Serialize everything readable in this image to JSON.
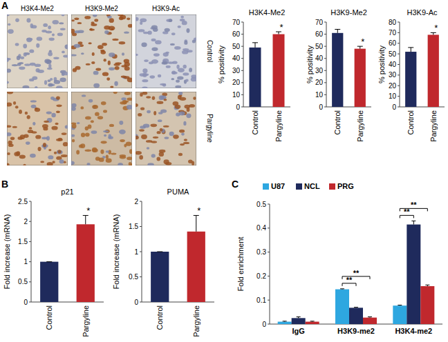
{
  "figure": {
    "panel_labels": [
      "A",
      "B",
      "C"
    ],
    "image_columns": [
      "H3K4-Me2",
      "H3K9-Me2",
      "H3K9-Ac"
    ],
    "image_rows": [
      "Control",
      "Pargyline"
    ]
  },
  "chart_data": [
    {
      "type": "bar",
      "title": "H3K4-Me2",
      "y_label": "% positivity",
      "categories": [
        "Control",
        "Pargyline"
      ],
      "values": [
        49,
        60
      ],
      "errors": [
        4,
        2
      ],
      "annotations": [
        null,
        "*"
      ],
      "colors": [
        "#1f2a5c",
        "#c0282d"
      ],
      "ylim": [
        0,
        70
      ],
      "yticks": [
        0,
        10,
        20,
        30,
        40,
        50,
        60,
        70
      ]
    },
    {
      "type": "bar",
      "title": "H3K9-Me2",
      "y_label": "% positivity",
      "categories": [
        "Control",
        "Pargyline"
      ],
      "values": [
        61,
        48
      ],
      "errors": [
        3,
        2
      ],
      "annotations": [
        null,
        "*"
      ],
      "colors": [
        "#1f2a5c",
        "#c0282d"
      ],
      "ylim": [
        0,
        70
      ],
      "yticks": [
        0,
        10,
        20,
        30,
        40,
        50,
        60,
        70
      ]
    },
    {
      "type": "bar",
      "title": "H3K9-Ac",
      "y_label": "% positivity",
      "categories": [
        "Control",
        "Pargyline"
      ],
      "values": [
        52,
        68
      ],
      "errors": [
        4,
        2
      ],
      "annotations": [
        null,
        "*"
      ],
      "colors": [
        "#1f2a5c",
        "#c0282d"
      ],
      "ylim": [
        0,
        80
      ],
      "yticks": [
        0,
        10,
        20,
        30,
        40,
        50,
        60,
        70,
        80
      ]
    },
    {
      "type": "bar",
      "title": "p21",
      "y_label": "Fold increase (mRNA)",
      "categories": [
        "Control",
        "Pargyline"
      ],
      "values": [
        1,
        1.93
      ],
      "errors": [
        0,
        0.22
      ],
      "annotations": [
        null,
        "*"
      ],
      "colors": [
        "#1f2a5c",
        "#c0282d"
      ],
      "ylim": [
        0,
        2.5
      ],
      "yticks": [
        0,
        0.5,
        1,
        1.5,
        2,
        2.5
      ]
    },
    {
      "type": "bar",
      "title": "PUMA",
      "y_label": "Fold increase (mRNA)",
      "categories": [
        "Control",
        "Pargyline"
      ],
      "values": [
        1,
        1.4
      ],
      "errors": [
        0,
        0.32
      ],
      "annotations": [
        null,
        "*"
      ],
      "colors": [
        "#1f2a5c",
        "#c0282d"
      ],
      "ylim": [
        0,
        2
      ],
      "yticks": [
        0,
        0.5,
        1,
        1.5,
        2
      ]
    },
    {
      "type": "bar",
      "y_label": "Fold enrichment",
      "categories": [
        "IgG",
        "H3K9-me2",
        "H3K4-me2"
      ],
      "legend": "top-left",
      "series": [
        {
          "name": "U87",
          "color": "#2ea7e0",
          "values": [
            0.01,
            0.145,
            0.077
          ],
          "errors": [
            0.002,
            0.002,
            0.002
          ]
        },
        {
          "name": "NCL",
          "color": "#1f2a5c",
          "values": [
            0.025,
            0.068,
            0.415
          ],
          "errors": [
            0.005,
            0.002,
            0.015
          ]
        },
        {
          "name": "PRG",
          "color": "#c0282d",
          "values": [
            0.01,
            0.027,
            0.158
          ],
          "errors": [
            0.002,
            0.003,
            0.005
          ]
        }
      ],
      "comparisons": [
        {
          "category": "H3K9-me2",
          "between": [
            "U87",
            "NCL"
          ],
          "label": "**"
        },
        {
          "category": "H3K9-me2",
          "between": [
            "U87",
            "PRG"
          ],
          "label": "**"
        },
        {
          "category": "H3K4-me2",
          "between": [
            "U87",
            "NCL"
          ],
          "label": "**"
        },
        {
          "category": "H3K4-me2",
          "between": [
            "U87",
            "PRG"
          ],
          "label": "**"
        }
      ],
      "ylim": [
        0,
        0.5
      ],
      "yticks": [
        0,
        0.1,
        0.2,
        0.3,
        0.4,
        0.5
      ]
    }
  ]
}
